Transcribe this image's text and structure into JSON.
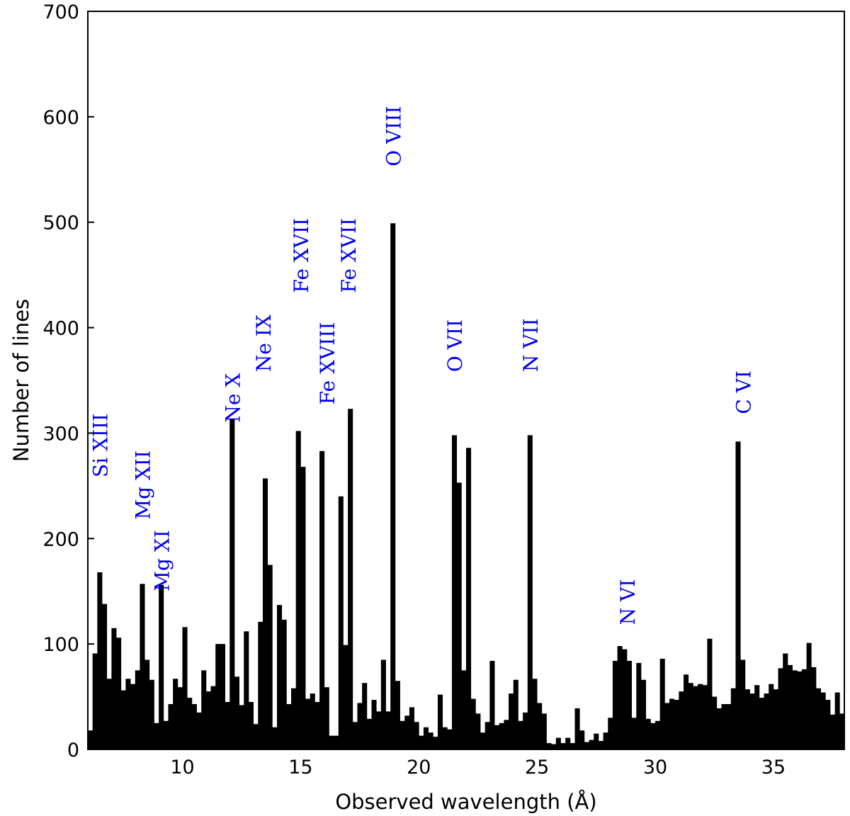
{
  "chart_data": {
    "type": "bar",
    "title": "",
    "xlabel": "Observed wavelength (Å)",
    "ylabel": "Number of lines",
    "xlim": [
      6.0,
      38.0
    ],
    "ylim": [
      0,
      700
    ],
    "xticks": [
      10,
      15,
      20,
      25,
      30,
      35
    ],
    "yticks": [
      0,
      100,
      200,
      300,
      400,
      500,
      600,
      700
    ],
    "grid": false,
    "bar_color": "#000000",
    "annotation_color": "#0000ee",
    "bin_width": 0.2,
    "x": [
      6.1,
      6.3,
      6.5,
      6.7,
      6.9,
      7.1,
      7.3,
      7.5,
      7.7,
      7.9,
      8.1,
      8.3,
      8.5,
      8.7,
      8.9,
      9.1,
      9.3,
      9.5,
      9.7,
      9.9,
      10.1,
      10.3,
      10.5,
      10.7,
      10.9,
      11.1,
      11.3,
      11.5,
      11.7,
      11.9,
      12.1,
      12.3,
      12.5,
      12.7,
      12.9,
      13.1,
      13.3,
      13.5,
      13.7,
      13.9,
      14.1,
      14.3,
      14.5,
      14.7,
      14.9,
      15.1,
      15.3,
      15.5,
      15.7,
      15.9,
      16.1,
      16.3,
      16.5,
      16.7,
      16.9,
      17.1,
      17.3,
      17.5,
      17.7,
      17.9,
      18.1,
      18.3,
      18.5,
      18.7,
      18.9,
      19.1,
      19.3,
      19.5,
      19.7,
      19.9,
      20.1,
      20.3,
      20.5,
      20.7,
      20.9,
      21.1,
      21.3,
      21.5,
      21.7,
      21.9,
      22.1,
      22.3,
      22.5,
      22.7,
      22.9,
      23.1,
      23.3,
      23.5,
      23.7,
      23.9,
      24.1,
      24.3,
      24.5,
      24.7,
      24.9,
      25.1,
      25.3,
      25.5,
      25.7,
      25.9,
      26.1,
      26.3,
      26.5,
      26.7,
      26.9,
      27.1,
      27.3,
      27.5,
      27.7,
      27.9,
      28.1,
      28.3,
      28.5,
      28.7,
      28.9,
      29.1,
      29.3,
      29.5,
      29.7,
      29.9,
      30.1,
      30.3,
      30.5,
      30.7,
      30.9,
      31.1,
      31.3,
      31.5,
      31.7,
      31.9,
      32.1,
      32.3,
      32.5,
      32.7,
      32.9,
      33.1,
      33.3,
      33.5,
      33.7,
      33.9,
      34.1,
      34.3,
      34.5,
      34.7,
      34.9,
      35.1,
      35.3,
      35.5,
      35.7,
      35.9,
      36.1,
      36.3,
      36.5,
      36.7,
      36.9,
      37.1,
      37.3,
      37.5,
      37.7,
      37.9
    ],
    "values": [
      18,
      91,
      168,
      138,
      67,
      115,
      106,
      56,
      67,
      62,
      75,
      157,
      85,
      66,
      25,
      156,
      27,
      43,
      67,
      59,
      116,
      49,
      43,
      35,
      75,
      55,
      60,
      100,
      100,
      45,
      313,
      69,
      42,
      112,
      45,
      24,
      121,
      257,
      175,
      21,
      137,
      123,
      43,
      58,
      302,
      268,
      48,
      53,
      45,
      283,
      59,
      13,
      13,
      240,
      99,
      323,
      26,
      44,
      63,
      29,
      47,
      36,
      85,
      36,
      499,
      65,
      27,
      32,
      40,
      26,
      13,
      21,
      16,
      12,
      52,
      21,
      19,
      298,
      253,
      75,
      286,
      48,
      34,
      16,
      26,
      84,
      23,
      25,
      28,
      53,
      66,
      27,
      35,
      298,
      67,
      44,
      34,
      6,
      5,
      11,
      6,
      11,
      6,
      39,
      18,
      7,
      9,
      15,
      8,
      16,
      30,
      84,
      98,
      95,
      84,
      30,
      82,
      66,
      29,
      25,
      27,
      86,
      44,
      48,
      47,
      55,
      71,
      63,
      60,
      62,
      61,
      105,
      50,
      39,
      43,
      43,
      58,
      292,
      85,
      57,
      53,
      61,
      49,
      53,
      62,
      57,
      77,
      91,
      80,
      75,
      74,
      76,
      101,
      78,
      58,
      54,
      47,
      33,
      54,
      34
    ],
    "annotations": [
      {
        "text": "Si XIII",
        "x": 6.6,
        "y": 258
      },
      {
        "text": "Mg XII",
        "x": 8.4,
        "y": 218
      },
      {
        "text": "Mg XI",
        "x": 9.2,
        "y": 150
      },
      {
        "text": "Ne X",
        "x": 12.2,
        "y": 310
      },
      {
        "text": "Ne IX",
        "x": 13.5,
        "y": 358
      },
      {
        "text": "Fe XVII",
        "x": 15.1,
        "y": 433
      },
      {
        "text": "Fe XVIII",
        "x": 16.2,
        "y": 327
      },
      {
        "text": "Fe XVII",
        "x": 17.1,
        "y": 433
      },
      {
        "text": "O VIII",
        "x": 19.0,
        "y": 553
      },
      {
        "text": "O VII",
        "x": 21.6,
        "y": 358
      },
      {
        "text": "N VII",
        "x": 24.8,
        "y": 358
      },
      {
        "text": "N VI",
        "x": 28.9,
        "y": 118
      },
      {
        "text": "C VI",
        "x": 33.8,
        "y": 318
      }
    ]
  }
}
